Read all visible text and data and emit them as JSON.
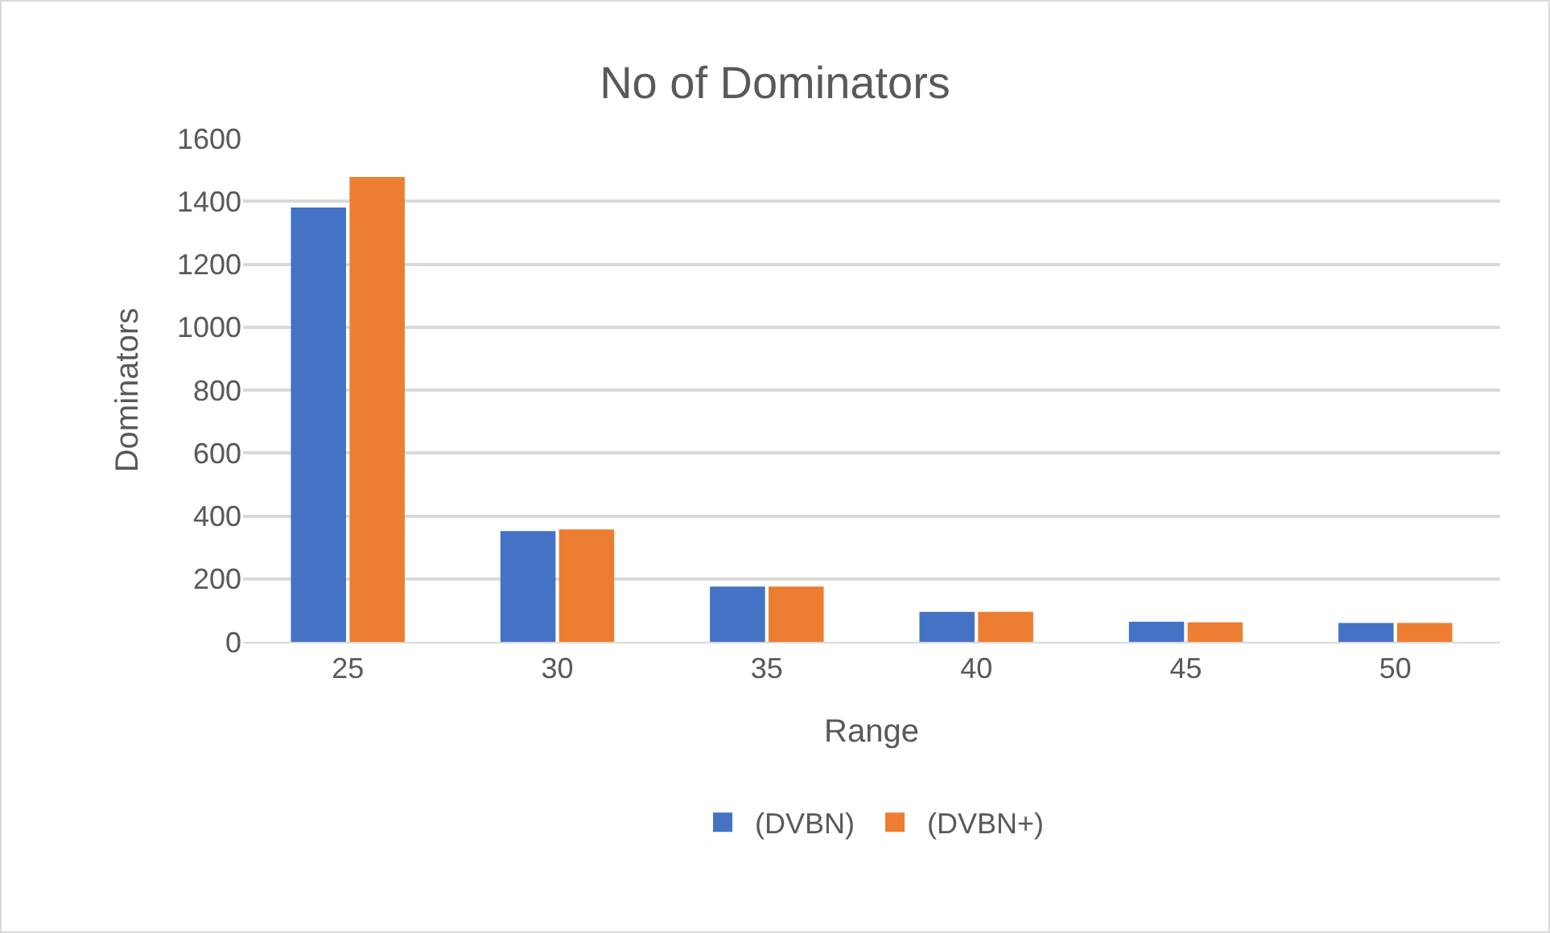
{
  "chart_data": {
    "type": "bar",
    "title": "No of Dominators",
    "xlabel": "Range",
    "ylabel": "Dominators",
    "categories": [
      "25",
      "30",
      "35",
      "40",
      "45",
      "50"
    ],
    "series": [
      {
        "name": "(DVBN)",
        "color": "#4472c4",
        "values": [
          1380,
          352,
          176,
          95,
          64,
          60
        ]
      },
      {
        "name": "(DVBN+)",
        "color": "#ed7d31",
        "values": [
          1477,
          357,
          176,
          95,
          62,
          60
        ]
      }
    ],
    "ylim": [
      0,
      1600
    ],
    "yticks": [
      0,
      200,
      400,
      600,
      800,
      1000,
      1200,
      1400,
      1600
    ],
    "grid": "y",
    "legend": "bottom"
  }
}
